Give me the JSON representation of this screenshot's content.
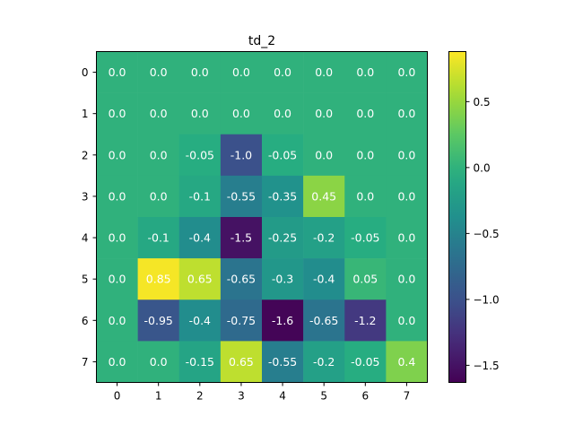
{
  "chart_data": {
    "type": "heatmap",
    "title": "td_2",
    "xlabel": "",
    "ylabel": "",
    "x_ticks": [
      "0",
      "1",
      "2",
      "3",
      "4",
      "5",
      "6",
      "7"
    ],
    "y_ticks": [
      "0",
      "1",
      "2",
      "3",
      "4",
      "5",
      "6",
      "7"
    ],
    "values": [
      [
        0.0,
        0.0,
        0.0,
        0.0,
        0.0,
        0.0,
        0.0,
        0.0
      ],
      [
        0.0,
        0.0,
        0.0,
        0.0,
        0.0,
        0.0,
        0.0,
        0.0
      ],
      [
        0.0,
        0.0,
        -0.05,
        -1.0,
        -0.05,
        0.0,
        0.0,
        0.0
      ],
      [
        0.0,
        0.0,
        -0.1,
        -0.55,
        -0.35,
        0.45,
        0.0,
        0.0
      ],
      [
        0.0,
        -0.1,
        -0.4,
        -1.5,
        -0.25,
        -0.2,
        -0.05,
        0.0
      ],
      [
        0.0,
        0.85,
        0.65,
        -0.65,
        -0.3,
        -0.4,
        0.05,
        0.0
      ],
      [
        0.0,
        -0.95,
        -0.4,
        -0.75,
        -1.6,
        -0.65,
        -1.2,
        0.0
      ],
      [
        0.0,
        0.0,
        -0.15,
        0.65,
        -0.55,
        -0.2,
        -0.05,
        0.4
      ]
    ],
    "cell_labels": [
      [
        "0.0",
        "0.0",
        "0.0",
        "0.0",
        "0.0",
        "0.0",
        "0.0",
        "0.0"
      ],
      [
        "0.0",
        "0.0",
        "0.0",
        "0.0",
        "0.0",
        "0.0",
        "0.0",
        "0.0"
      ],
      [
        "0.0",
        "0.0",
        "-0.05",
        "-1.0",
        "-0.05",
        "0.0",
        "0.0",
        "0.0"
      ],
      [
        "0.0",
        "0.0",
        "-0.1",
        "-0.55",
        "-0.35",
        "0.45",
        "0.0",
        "0.0"
      ],
      [
        "0.0",
        "-0.1",
        "-0.4",
        "-1.5",
        "-0.25",
        "-0.2",
        "-0.05",
        "0.0"
      ],
      [
        "0.0",
        "0.85",
        "0.65",
        "-0.65",
        "-0.3",
        "-0.4",
        "0.05",
        "0.0"
      ],
      [
        "0.0",
        "-0.95",
        "-0.4",
        "-0.75",
        "-1.6",
        "-0.65",
        "-1.2",
        "0.0"
      ],
      [
        "0.0",
        "0.0",
        "-0.15",
        "0.65",
        "-0.55",
        "-0.2",
        "-0.05",
        "0.4"
      ]
    ],
    "colormap": "viridis",
    "vmin": -1.63,
    "vmax": 0.88,
    "colorbar_ticks": [
      0.5,
      0.0,
      -0.5,
      -1.0,
      -1.5
    ],
    "colorbar_tick_labels": [
      "0.5",
      "0.0",
      "−0.5",
      "−1.0",
      "−1.5"
    ],
    "cell_text_color": "#ffffff"
  }
}
